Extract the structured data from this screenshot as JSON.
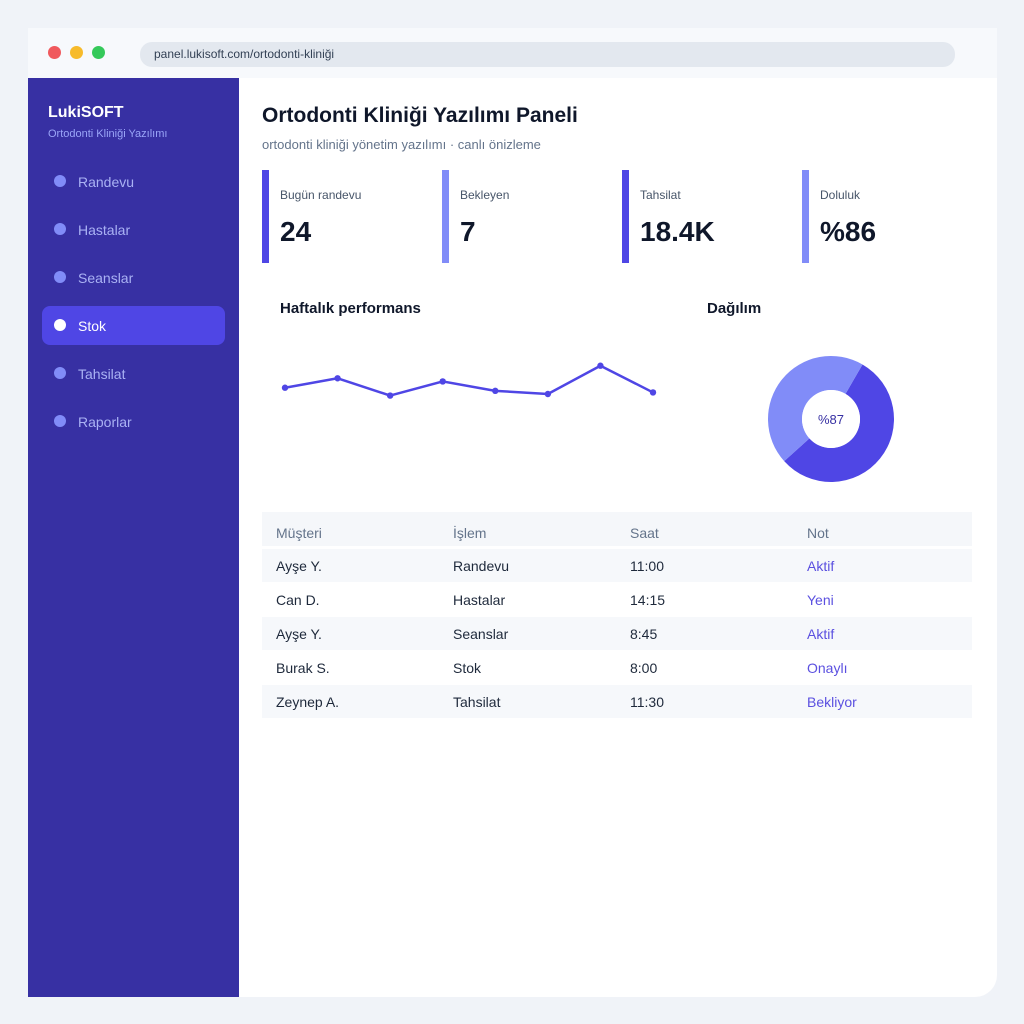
{
  "browser": {
    "url": "panel.lukisoft.com/ortodonti-kliniği"
  },
  "sidebar": {
    "brand": "LukiSOFT",
    "brand_sub": "Ortodonti Kliniği Yazılımı",
    "items": [
      {
        "label": "Randevu",
        "active": false
      },
      {
        "label": "Hastalar",
        "active": false
      },
      {
        "label": "Seanslar",
        "active": false
      },
      {
        "label": "Stok",
        "active": true
      },
      {
        "label": "Tahsilat",
        "active": false
      },
      {
        "label": "Raporlar",
        "active": false
      }
    ]
  },
  "header": {
    "title": "Ortodonti Kliniği Yazılımı Paneli",
    "subtitle": "ortodonti kliniği yönetim yazılımı · canlı önizleme"
  },
  "kpis": [
    {
      "label": "Bugün randevu",
      "value": "24"
    },
    {
      "label": "Bekleyen",
      "value": "7"
    },
    {
      "label": "Tahsilat",
      "value": "18.4K"
    },
    {
      "label": "Doluluk",
      "value": "%86"
    }
  ],
  "sections": {
    "performance_title": "Haftalık performans",
    "distribution_title": "Dağılım"
  },
  "chart_data": [
    {
      "type": "line",
      "title": "Haftalık performans",
      "x": [
        1,
        2,
        3,
        4,
        5,
        6,
        7,
        8
      ],
      "series": [
        {
          "values": [
            46,
            52,
            41,
            50,
            44,
            42,
            60,
            43
          ]
        }
      ],
      "ylim": [
        0,
        70
      ],
      "grid": false,
      "color": "#4f46e5"
    },
    {
      "type": "pie",
      "title": "Dağılım",
      "center_label": "%87",
      "slices": [
        {
          "value": 55,
          "color": "#4f46e5"
        },
        {
          "value": 45,
          "color": "#818cf8"
        }
      ]
    }
  ],
  "table": {
    "columns": [
      "Müşteri",
      "İşlem",
      "Saat",
      "Not"
    ],
    "rows": [
      [
        "Ayşe Y.",
        "Randevu",
        "11:00",
        "Aktif"
      ],
      [
        "Can D.",
        "Hastalar",
        "14:15",
        "Yeni"
      ],
      [
        "Ayşe Y.",
        "Seanslar",
        "8:45",
        "Aktif"
      ],
      [
        "Burak S.",
        "Stok",
        "8:00",
        "Onaylı"
      ],
      [
        "Zeynep A.",
        "Tahsilat",
        "11:30",
        "Bekliyor"
      ]
    ]
  },
  "colors": {
    "sidebar": "#3730a3",
    "accent": "#4f46e5",
    "accent_light": "#818cf8",
    "status_text": "#5b50e0"
  }
}
